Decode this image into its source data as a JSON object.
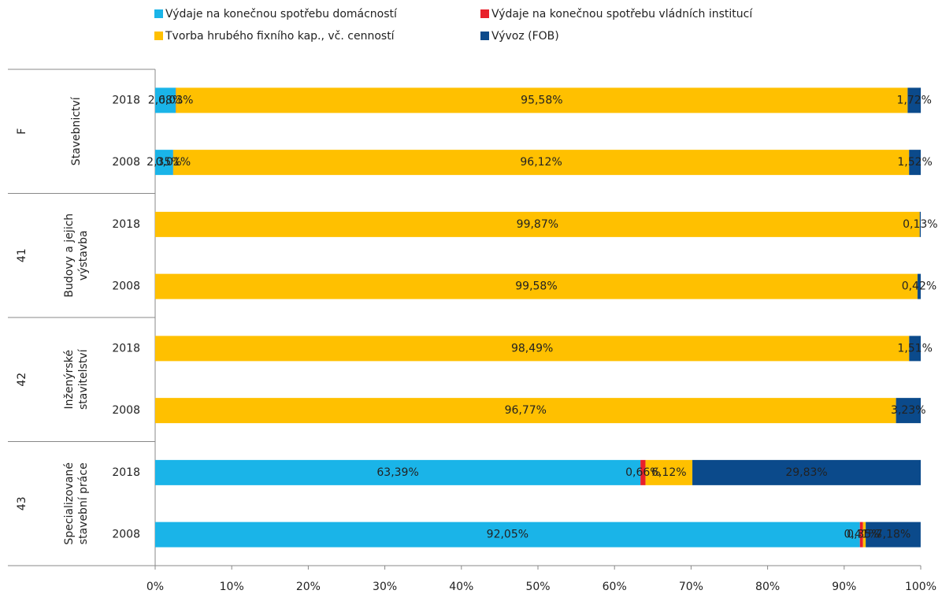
{
  "chart_data": {
    "type": "stacked-bar-horizontal",
    "categories": [
      "2018",
      "2008",
      "2018",
      "2008",
      "2018",
      "2008",
      "2018",
      "2008"
    ],
    "groups": [
      {
        "code": "F",
        "name": [
          "Stavebnictví"
        ]
      },
      {
        "code": "41",
        "name": [
          "Budovy a jejich",
          "výstavba"
        ]
      },
      {
        "code": "42",
        "name": [
          "Inženýrské",
          "stavitelství"
        ]
      },
      {
        "code": "43",
        "name": [
          "Specializované",
          "stavební práce"
        ]
      }
    ],
    "series": [
      {
        "name": "Výdaje na konečnou spotřebu domácností",
        "color": "#1ab4e8",
        "values": [
          2.68,
          2.35,
          0,
          0,
          0,
          0,
          63.39,
          92.05
        ],
        "value_labels": [
          "2,68%",
          "2,35%",
          null,
          null,
          null,
          null,
          "63,39%",
          "92,05%"
        ]
      },
      {
        "name": "Výdaje na konečnou spotřebu vládních institucí",
        "color": "#e8202a",
        "values": [
          0.03,
          0.01,
          0,
          0,
          0,
          0,
          0.66,
          0.41
        ],
        "value_labels": [
          "0,03%",
          "0,01%",
          null,
          null,
          null,
          null,
          "0,66%",
          "0,41%"
        ]
      },
      {
        "name": "Tvorba hrubého fixního kap., vč. cenností",
        "color": "#ffc000",
        "values": [
          95.58,
          96.12,
          99.87,
          99.58,
          98.49,
          96.77,
          6.12,
          0.35
        ],
        "value_labels": [
          "95,58%",
          "96,12%",
          "99,87%",
          "99,58%",
          "98,49%",
          "96,77%",
          "6,12%",
          "0,35%"
        ]
      },
      {
        "name": "Vývoz (FOB)",
        "color": "#0b4a8b",
        "values": [
          1.72,
          1.52,
          0.13,
          0.42,
          1.51,
          3.23,
          29.83,
          7.18
        ],
        "value_labels": [
          "1,72%",
          "1,52%",
          "0,13%",
          "0,42%",
          "1,51%",
          "3,23%",
          "29,83%",
          "7,18%"
        ]
      }
    ],
    "xlim": [
      0,
      100
    ],
    "xticks": [
      {
        "value": 0,
        "label": "0%"
      },
      {
        "value": 10,
        "label": "10%"
      },
      {
        "value": 20,
        "label": "20%"
      },
      {
        "value": 30,
        "label": "30%"
      },
      {
        "value": 40,
        "label": "40%"
      },
      {
        "value": 50,
        "label": "50%"
      },
      {
        "value": 60,
        "label": "60%"
      },
      {
        "value": 70,
        "label": "70%"
      },
      {
        "value": 80,
        "label": "80%"
      },
      {
        "value": 90,
        "label": "90%"
      },
      {
        "value": 100,
        "label": "100%"
      }
    ]
  }
}
